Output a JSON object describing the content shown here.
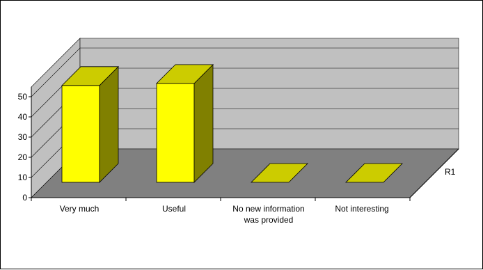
{
  "chart_data": {
    "type": "bar",
    "style": "3d-column",
    "categories": [
      "Very much",
      "Useful",
      "No new information was provided",
      "Not interesting"
    ],
    "category_label_lines": [
      [
        "Very much"
      ],
      [
        "Useful"
      ],
      [
        "No new information",
        "was provided"
      ],
      [
        "Not interesting"
      ]
    ],
    "series": [
      {
        "name": "R1",
        "values": [
          48,
          49,
          0,
          0
        ]
      }
    ],
    "y_ticks": [
      "0",
      "10",
      "20",
      "30",
      "40",
      "50"
    ],
    "ylim": [
      0,
      50
    ],
    "grid": true,
    "legend": "none",
    "colors": {
      "bar_front": "#ffff00",
      "bar_top": "#cccc00",
      "bar_side": "#808000",
      "back_wall": "#c0c0c0",
      "side_wall": "#c0c0c0",
      "floor": "#808080",
      "gridline": "#000000"
    }
  }
}
